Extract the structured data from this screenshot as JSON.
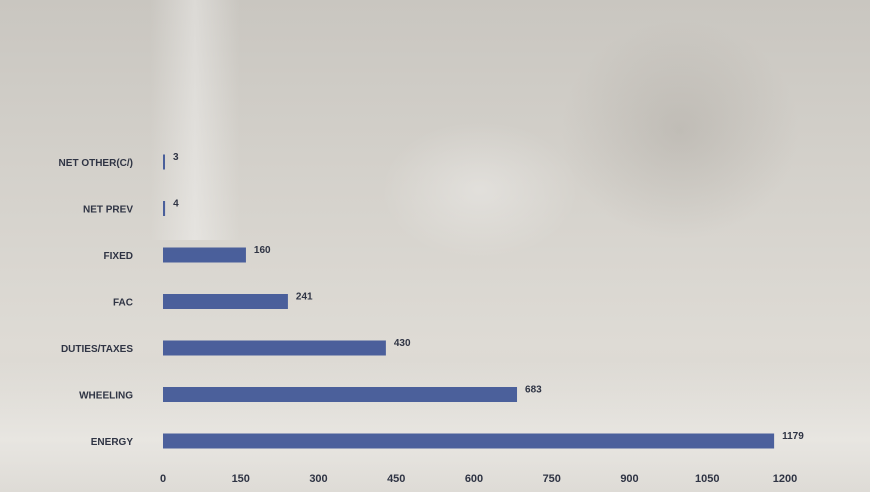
{
  "chart_data": {
    "type": "bar",
    "orientation": "horizontal",
    "title": "",
    "xlabel": "",
    "ylabel": "",
    "categories": [
      "NET OTHER(C/)",
      "NET PREV",
      "FIXED",
      "FAC",
      "DUTIES/TAXES",
      "WHEELING",
      "ENERGY"
    ],
    "values": [
      3,
      4,
      160,
      241,
      430,
      683,
      1179
    ],
    "value_labels": [
      "3",
      "4",
      "160",
      "241",
      "430",
      "683",
      "1179"
    ],
    "xlim": [
      0,
      1200
    ],
    "x_ticks": [
      0,
      150,
      300,
      450,
      600,
      750,
      900,
      1050,
      1200
    ],
    "x_tick_labels": [
      "0",
      "150",
      "300",
      "450",
      "600",
      "750",
      "900",
      "1050",
      "1200"
    ],
    "grid": false,
    "legend": "none",
    "bar_color": "#3e5596"
  }
}
